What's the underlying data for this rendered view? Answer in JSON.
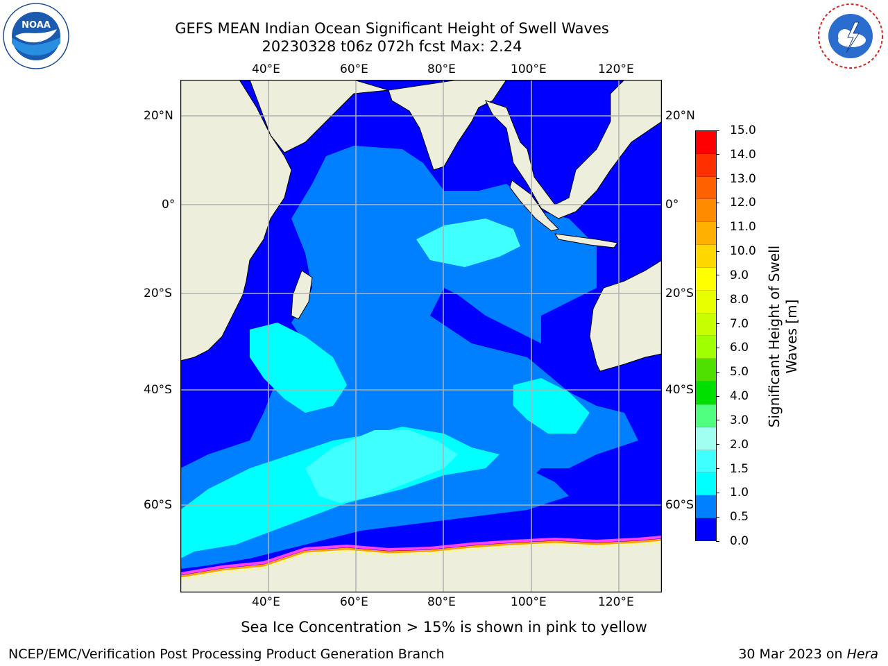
{
  "header": {
    "title_line1": "GEFS MEAN Indian Ocean Significant Height of Swell Waves",
    "title_line2": "20230328 t06z 072h fcst   Max: 2.24"
  },
  "logos": {
    "left": {
      "name": "noaa-logo",
      "text": "NOAA",
      "ring_text": "NATIONAL OCEANIC AND ATMOSPHERIC ADMINISTRATION · U.S. DEPARTMENT OF COMMERCE"
    },
    "right": {
      "name": "nws-logo",
      "ring_text": "NATIONAL WEATHER SERVICE"
    }
  },
  "map": {
    "lon_labels_top": [
      "40°E",
      "60°E",
      "80°E",
      "100°E",
      "120°E"
    ],
    "lon_labels_bottom": [
      "40°E",
      "60°E",
      "80°E",
      "100°E",
      "120°E"
    ],
    "lat_labels_left": [
      "20°N",
      "0°",
      "20°S",
      "40°S",
      "60°S"
    ],
    "lat_labels_right": [
      "20°N",
      "0°",
      "20°S",
      "40°S",
      "60°S"
    ],
    "colors": {
      "land": "#eeeedc",
      "ocean_deep": "#0000ff",
      "band_0_5_1_0": "#0080ff",
      "band_1_0_1_5": "#00ffff",
      "band_1_5_2_0": "#40ffff",
      "ice_pink": "#ff40ff",
      "ice_orange": "#ffa000",
      "ice_yellow": "#ffff60",
      "grid": "#b0b0b0"
    }
  },
  "colorbar": {
    "label_line1": "Significant Height of Swell",
    "label_line2": "Waves [m]",
    "ticks": [
      "15.0",
      "14.0",
      "13.0",
      "12.0",
      "11.0",
      "10.0",
      "9.0",
      "8.0",
      "7.0",
      "6.0",
      "5.0",
      "4.0",
      "3.0",
      "2.0",
      "1.5",
      "1.0",
      "0.5",
      "0.0"
    ],
    "colors_top_to_bottom": [
      "#ff0000",
      "#ff3000",
      "#ff6000",
      "#ff8c00",
      "#ffb000",
      "#ffd800",
      "#ffff00",
      "#e8ff00",
      "#c8ff00",
      "#a0ff00",
      "#50e000",
      "#00e000",
      "#50ff80",
      "#a0fff0",
      "#40ffff",
      "#00ffff",
      "#0080ff",
      "#0000ff"
    ]
  },
  "footer": {
    "note": "Sea Ice Concentration > 15% is shown in pink to yellow",
    "credit": "NCEP/EMC/Verification Post Processing Product Generation Branch",
    "date_prefix": "30 Mar 2023 on",
    "machine": "Hera"
  }
}
